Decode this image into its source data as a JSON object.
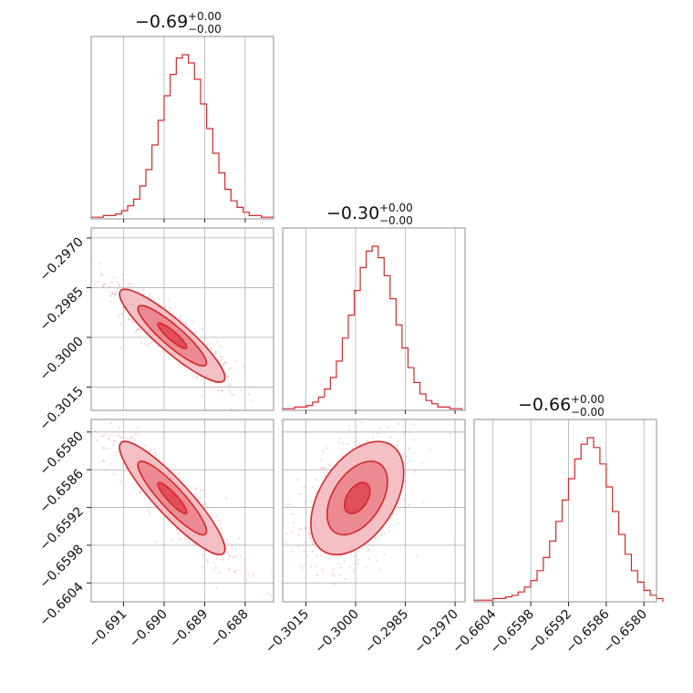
{
  "chart_data": {
    "type": "corner",
    "color": "#d62728",
    "grid": true,
    "parameters": [
      {
        "title_main": "−0.69",
        "title_upper": "+0.00",
        "title_lower": "−0.00",
        "range": [
          -0.6918,
          -0.6873
        ],
        "ticks": [
          -0.691,
          -0.69,
          -0.689,
          -0.688
        ],
        "tick_labels": [
          "−0.691",
          "−0.690",
          "−0.689",
          "−0.688"
        ],
        "hist": {
          "edges_start": -0.6918,
          "bin_width": 0.00015,
          "counts": [
            1,
            1,
            2,
            2,
            3,
            5,
            8,
            12,
            20,
            30,
            45,
            60,
            75,
            88,
            98,
            100,
            95,
            85,
            70,
            55,
            40,
            28,
            18,
            11,
            7,
            4,
            2,
            2,
            1,
            1
          ]
        }
      },
      {
        "title_main": "−0.30",
        "title_upper": "+0.00",
        "title_lower": "−0.00",
        "range": [
          -0.3022,
          -0.2967
        ],
        "ticks": [
          -0.3015,
          -0.3,
          -0.2985,
          -0.297
        ],
        "tick_labels": [
          "−0.3015",
          "−0.3000",
          "−0.2985",
          "−0.2970"
        ],
        "hist": {
          "edges_start": -0.3022,
          "bin_width": 0.00018,
          "counts": [
            1,
            1,
            2,
            2,
            3,
            5,
            8,
            13,
            20,
            30,
            44,
            58,
            73,
            87,
            97,
            100,
            93,
            82,
            68,
            52,
            38,
            26,
            17,
            10,
            6,
            4,
            2,
            2,
            1,
            1
          ]
        }
      },
      {
        "title_main": "−0.66",
        "title_upper": "+0.00",
        "title_lower": "−0.00",
        "range": [
          -0.6607,
          -0.6578
        ],
        "ticks": [
          -0.6604,
          -0.6598,
          -0.6592,
          -0.6586,
          -0.658
        ],
        "tick_labels": [
          "−0.6604",
          "−0.6598",
          "−0.6592",
          "−0.6586",
          "−0.6580"
        ],
        "hist": {
          "edges_start": -0.6607,
          "bin_width": 0.0001,
          "counts": [
            1,
            1,
            1,
            2,
            2,
            3,
            4,
            6,
            9,
            13,
            19,
            27,
            37,
            49,
            62,
            75,
            87,
            96,
            100,
            94,
            84,
            70,
            55,
            41,
            29,
            19,
            12,
            7,
            4,
            2
          ]
        }
      }
    ],
    "pairs": [
      {
        "x_param": 0,
        "y_param": 1,
        "center": [
          -0.6898,
          -0.29995
        ],
        "sigma": [
          0.00065,
          0.0007
        ],
        "rho": -0.9,
        "n_points": 500
      },
      {
        "x_param": 0,
        "y_param": 2,
        "center": [
          -0.6898,
          -0.65905
        ],
        "sigma": [
          0.00065,
          0.00045
        ],
        "rho": -0.9,
        "n_points": 500
      },
      {
        "x_param": 1,
        "y_param": 2,
        "center": [
          -0.29995,
          -0.65905
        ],
        "sigma": [
          0.0007,
          0.00045
        ],
        "rho": 0.45,
        "n_points": 500
      }
    ]
  }
}
